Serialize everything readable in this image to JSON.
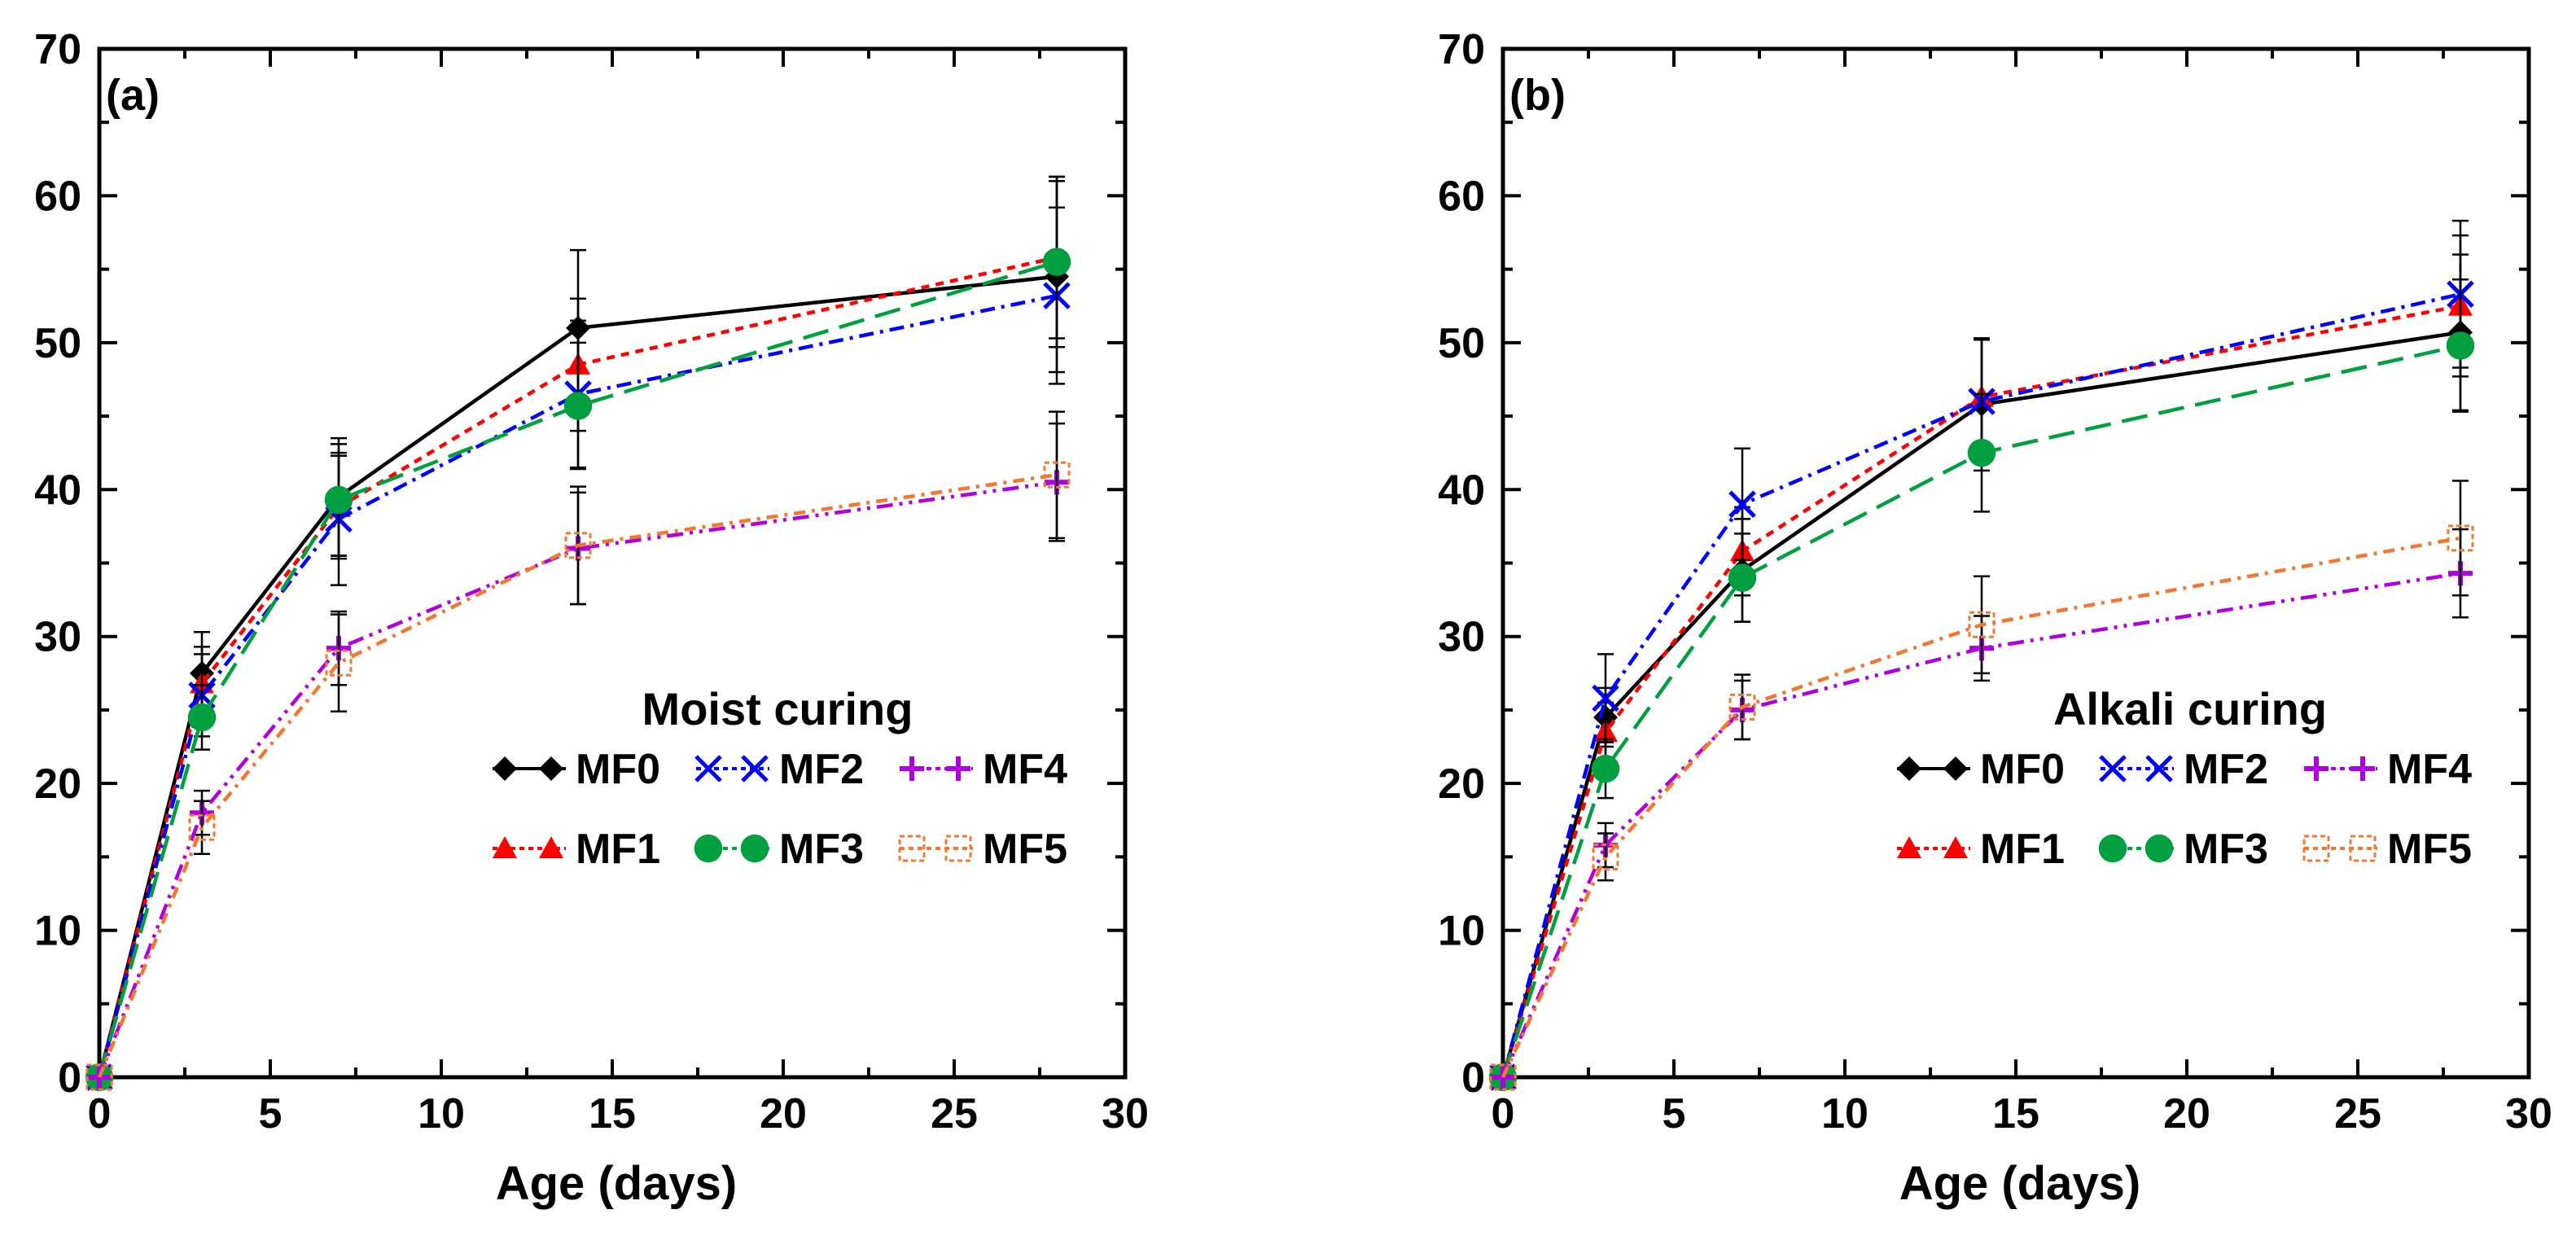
{
  "chart_data": [
    {
      "type": "line",
      "panel_label": "(a)",
      "legend_title": "Moist curing",
      "xlabel": "Age (days)",
      "ylabel": "",
      "xlim": [
        0,
        30
      ],
      "ylim": [
        0,
        70
      ],
      "xticks": [
        0,
        5,
        10,
        15,
        20,
        25,
        30
      ],
      "yticks": [
        0,
        10,
        20,
        30,
        40,
        50,
        60,
        70
      ],
      "x": [
        0,
        3,
        7,
        14,
        28
      ],
      "series": [
        {
          "name": "MF0",
          "values": [
            0,
            27.5,
            39.5,
            51.0,
            54.5
          ],
          "errors": [
            0,
            2.8,
            4.0,
            5.3,
            6.5
          ]
        },
        {
          "name": "MF1",
          "values": [
            0,
            26.8,
            38.8,
            48.5,
            55.8
          ],
          "errors": [
            0,
            2.5,
            3.5,
            4.5,
            5.5
          ]
        },
        {
          "name": "MF2",
          "values": [
            0,
            26.0,
            38.0,
            46.5,
            53.2
          ],
          "errors": [
            0,
            2.8,
            4.5,
            5.0,
            6.0
          ]
        },
        {
          "name": "MF3",
          "values": [
            0,
            24.5,
            39.3,
            45.7,
            55.5
          ],
          "errors": [
            0,
            2.2,
            3.8,
            4.3,
            5.8
          ]
        },
        {
          "name": "MF4",
          "values": [
            0,
            18.0,
            29.2,
            36.0,
            40.5
          ],
          "errors": [
            0,
            1.5,
            2.5,
            3.8,
            4.0
          ]
        },
        {
          "name": "MF5",
          "values": [
            0,
            17.0,
            28.2,
            36.2,
            41.0
          ],
          "errors": [
            0,
            1.8,
            3.3,
            4.0,
            4.3
          ]
        }
      ]
    },
    {
      "type": "line",
      "panel_label": "(b)",
      "legend_title": "Alkali curing",
      "xlabel": "Age (days)",
      "ylabel": "",
      "xlim": [
        0,
        30
      ],
      "ylim": [
        0,
        70
      ],
      "xticks": [
        0,
        5,
        10,
        15,
        20,
        25,
        30
      ],
      "yticks": [
        0,
        10,
        20,
        30,
        40,
        50,
        60,
        70
      ],
      "x": [
        0,
        3,
        7,
        14,
        28
      ],
      "series": [
        {
          "name": "MF0",
          "values": [
            0,
            24.5,
            34.5,
            45.8,
            50.7
          ],
          "errors": [
            0,
            2.0,
            3.5,
            4.5,
            5.3
          ]
        },
        {
          "name": "MF1",
          "values": [
            0,
            23.5,
            35.8,
            46.3,
            52.5
          ],
          "errors": [
            0,
            2.0,
            3.0,
            4.0,
            4.8
          ]
        },
        {
          "name": "MF2",
          "values": [
            0,
            25.8,
            39.0,
            46.0,
            53.3
          ],
          "errors": [
            0,
            3.0,
            3.8,
            4.2,
            5.0
          ]
        },
        {
          "name": "MF3",
          "values": [
            0,
            21.0,
            34.0,
            42.5,
            49.8
          ],
          "errors": [
            0,
            2.0,
            3.0,
            4.0,
            4.5
          ]
        },
        {
          "name": "MF4",
          "values": [
            0,
            15.8,
            25.0,
            29.2,
            34.3
          ],
          "errors": [
            0,
            1.5,
            2.0,
            2.2,
            3.0
          ]
        },
        {
          "name": "MF5",
          "values": [
            0,
            15.0,
            25.2,
            30.8,
            36.7
          ],
          "errors": [
            0,
            1.6,
            2.2,
            3.3,
            3.9
          ]
        }
      ]
    }
  ],
  "styles": {
    "MF0": {
      "color": "#000000",
      "marker": "diamond",
      "dash": ""
    },
    "MF1": {
      "color": "#ff0000",
      "marker": "triangle",
      "dash": "10,8"
    },
    "MF2": {
      "color": "#0000ff",
      "marker": "x",
      "dash": "18,8,4,8"
    },
    "MF3": {
      "color": "#00a040",
      "marker": "circle",
      "dash": "32,14"
    },
    "MF4": {
      "color": "#b000e0",
      "marker": "plus",
      "dash": "20,8,4,8,4,8"
    },
    "MF5": {
      "color": "#f07830",
      "marker": "square-open",
      "dash": "14,8,4,8"
    }
  }
}
